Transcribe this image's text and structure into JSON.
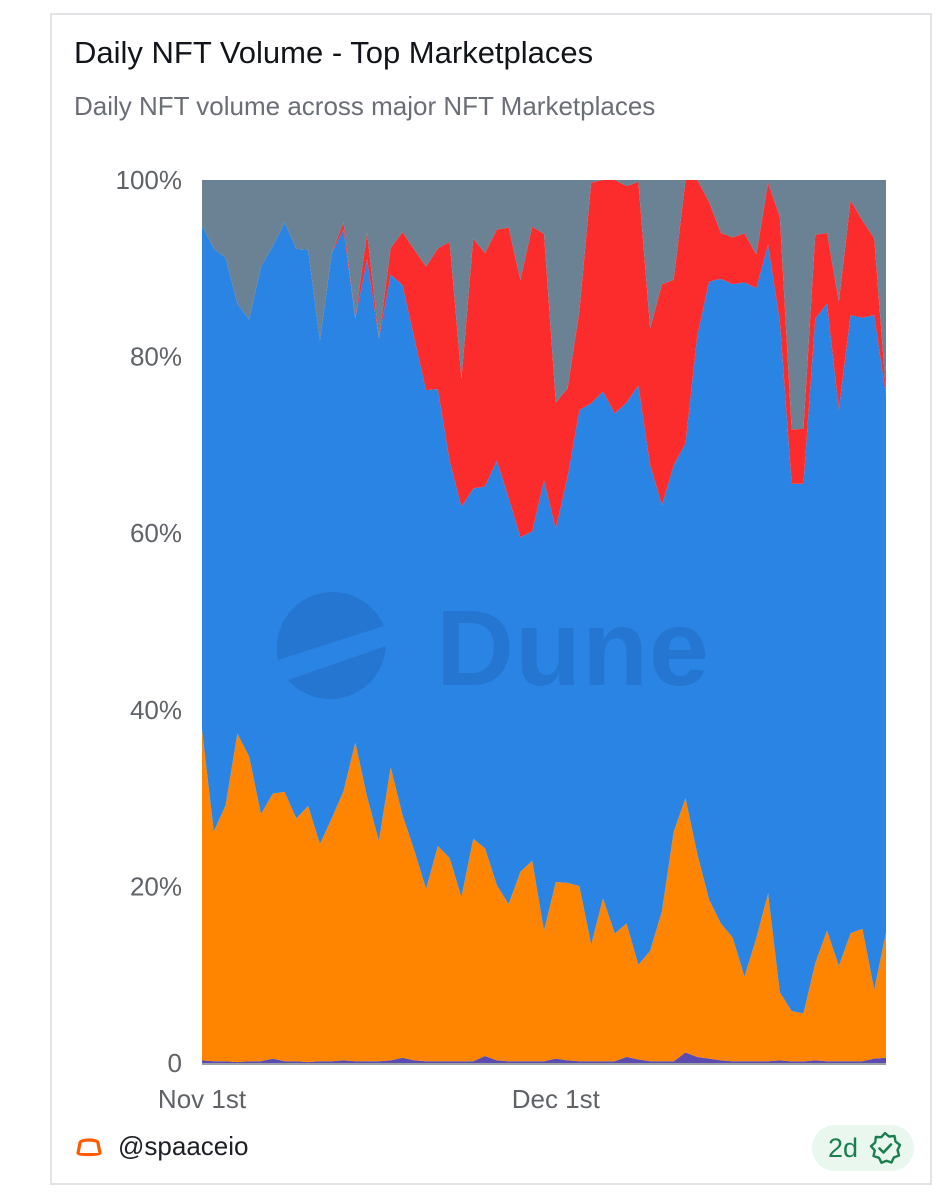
{
  "header": {
    "title": "Daily NFT Volume - Top Marketplaces",
    "subtitle": "Daily NFT volume across major NFT Marketplaces"
  },
  "footer": {
    "author": "@spaaceio",
    "age": "2d",
    "author_logo_icon": "spaace-logo-icon",
    "verified_icon": "check-badge-icon"
  },
  "watermark": {
    "text": "Dune",
    "logo_icon": "dune-logo-icon"
  },
  "chart_data": {
    "type": "area",
    "stacked": true,
    "normalized": true,
    "title": "Daily NFT Volume - Top Marketplaces",
    "subtitle": "Daily NFT volume across major NFT Marketplaces",
    "xlabel": "",
    "ylabel": "",
    "ylim": [
      0,
      100
    ],
    "y_ticks": [
      {
        "value": 0,
        "label": "0"
      },
      {
        "value": 20,
        "label": "20%"
      },
      {
        "value": 40,
        "label": "40%"
      },
      {
        "value": 60,
        "label": "60%"
      },
      {
        "value": 80,
        "label": "80%"
      },
      {
        "value": 100,
        "label": "100%"
      }
    ],
    "x_ticks": [
      {
        "index": 0,
        "label": "Nov 1st"
      },
      {
        "index": 30,
        "label": "Dec 1st"
      }
    ],
    "grid": false,
    "legend": "none",
    "x_count": 59,
    "series": [
      {
        "color": "#5b4bb0",
        "values": [
          0.3,
          0.2,
          0.2,
          0.1,
          0.2,
          0.2,
          0.5,
          0.2,
          0.2,
          0.1,
          0.2,
          0.2,
          0.3,
          0.2,
          0.2,
          0.2,
          0.3,
          0.6,
          0.3,
          0.2,
          0.2,
          0.2,
          0.2,
          0.2,
          0.8,
          0.3,
          0.2,
          0.2,
          0.2,
          0.2,
          0.5,
          0.3,
          0.2,
          0.2,
          0.2,
          0.2,
          0.7,
          0.4,
          0.2,
          0.2,
          0.2,
          1.2,
          0.7,
          0.5,
          0.3,
          0.2,
          0.2,
          0.2,
          0.2,
          0.3,
          0.2,
          0.2,
          0.3,
          0.2,
          0.2,
          0.2,
          0.2,
          0.5,
          0.6
        ]
      },
      {
        "color": "#ff8400",
        "values": [
          37.5,
          26,
          29,
          37.2,
          34.5,
          28,
          30,
          30.5,
          27.5,
          29,
          24.6,
          27.5,
          30.5,
          36.1,
          30,
          25,
          33.2,
          27.5,
          23.8,
          19.5,
          24.5,
          23,
          18.6,
          25.1,
          23.5,
          19.8,
          17.8,
          21.8,
          22.7,
          14.8,
          20,
          20.1,
          19.8,
          13.2,
          18.5,
          14.5,
          15.1,
          10.8,
          12.5,
          17,
          26,
          29,
          23.5,
          18,
          15.5,
          14,
          9.5,
          14,
          19,
          7.7,
          6,
          5.7,
          11,
          14.8,
          10.8,
          14.5,
          15,
          7.8,
          14.2
        ]
      },
      {
        "color": "#2a84e4",
        "values": [
          57,
          66,
          62,
          48.7,
          49.5,
          62,
          62,
          64.5,
          64.5,
          63,
          57,
          64,
          63.6,
          48,
          61,
          57,
          55.8,
          60,
          58,
          56.5,
          52,
          45,
          44.2,
          39.5,
          41,
          48,
          46,
          38.5,
          37.3,
          51,
          40,
          46,
          53.8,
          61.3,
          57.5,
          59,
          59,
          66,
          55,
          46,
          41.5,
          40.5,
          60,
          70,
          73,
          74,
          78,
          74,
          73.5,
          76,
          63,
          63,
          73,
          71,
          63,
          70,
          69.2,
          76.4,
          60.8
        ]
      },
      {
        "color": "#fc2c2c",
        "values": [
          0,
          0,
          0,
          0,
          0,
          0,
          0,
          0,
          0,
          0,
          0,
          0,
          0.8,
          0,
          3,
          0,
          3,
          6,
          10,
          14,
          16,
          24.8,
          14.5,
          28.2,
          26.4,
          26.1,
          30.6,
          29.6,
          34.5,
          27.9,
          14.3,
          10,
          11.2,
          25,
          24,
          26.5,
          24.5,
          23.2,
          15.5,
          25,
          21,
          30,
          18,
          9,
          5.2,
          5.3,
          5.5,
          3.8,
          7,
          11.8,
          6.5,
          6.5,
          9.5,
          8,
          12.2,
          13,
          11,
          8.7,
          0.4
        ]
      },
      {
        "color": "#6b8294",
        "values": [
          5.2,
          7.8,
          8.8,
          14,
          15.8,
          9.8,
          7.5,
          4.8,
          7.8,
          7.9,
          18.2,
          8.3,
          4.8,
          15.7,
          6,
          18,
          7.7,
          5.9,
          7.9,
          9.8,
          7.8,
          7.0,
          22.5,
          6.6,
          8.3,
          5.6,
          5.4,
          11.5,
          5.3,
          6.1,
          25.2,
          23.6,
          14.8,
          0.3,
          0,
          0,
          0.7,
          0.2,
          16.8,
          11.8,
          11.3,
          0,
          0,
          2.5,
          6,
          6.5,
          6,
          8.5,
          0.3,
          4.2,
          29.8,
          29.6,
          6.2,
          6,
          13.8,
          2.3,
          4.6,
          6.6,
          24
        ]
      }
    ]
  }
}
